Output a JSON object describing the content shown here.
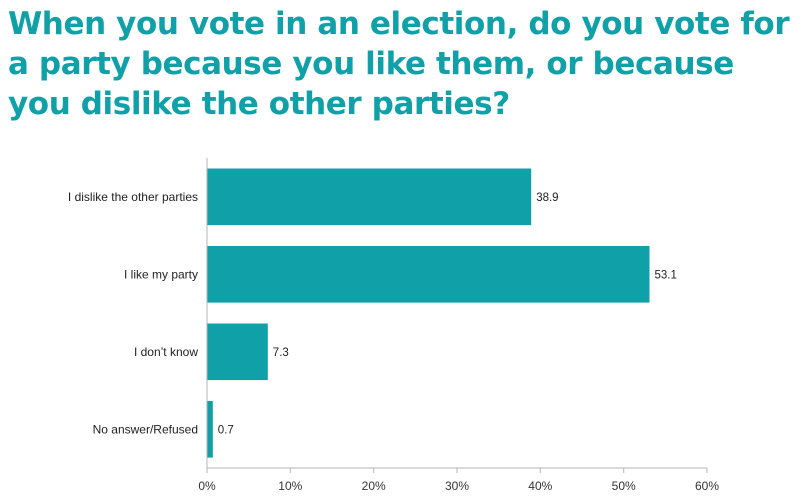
{
  "chart_data": {
    "type": "bar",
    "orientation": "horizontal",
    "title": "When you vote in an election, do you vote for a party because you like them, or because you dislike the other parties?",
    "categories": [
      "I dislike the other parties",
      "I like my party",
      "I don’t know",
      "No answer/Refused"
    ],
    "values": [
      38.9,
      53.1,
      7.3,
      0.7
    ],
    "value_labels": [
      "38.9",
      "53.1",
      "7.3",
      "0.7"
    ],
    "xlabel": "",
    "ylabel": "",
    "xlim": [
      0,
      60
    ],
    "ticks": [
      0,
      10,
      20,
      30,
      40,
      50,
      60
    ],
    "tick_labels": [
      "0%",
      "10%",
      "20%",
      "30%",
      "40%",
      "50%",
      "60%"
    ],
    "grid": false,
    "legend": "none",
    "bar_color": "#0fa0a8"
  }
}
